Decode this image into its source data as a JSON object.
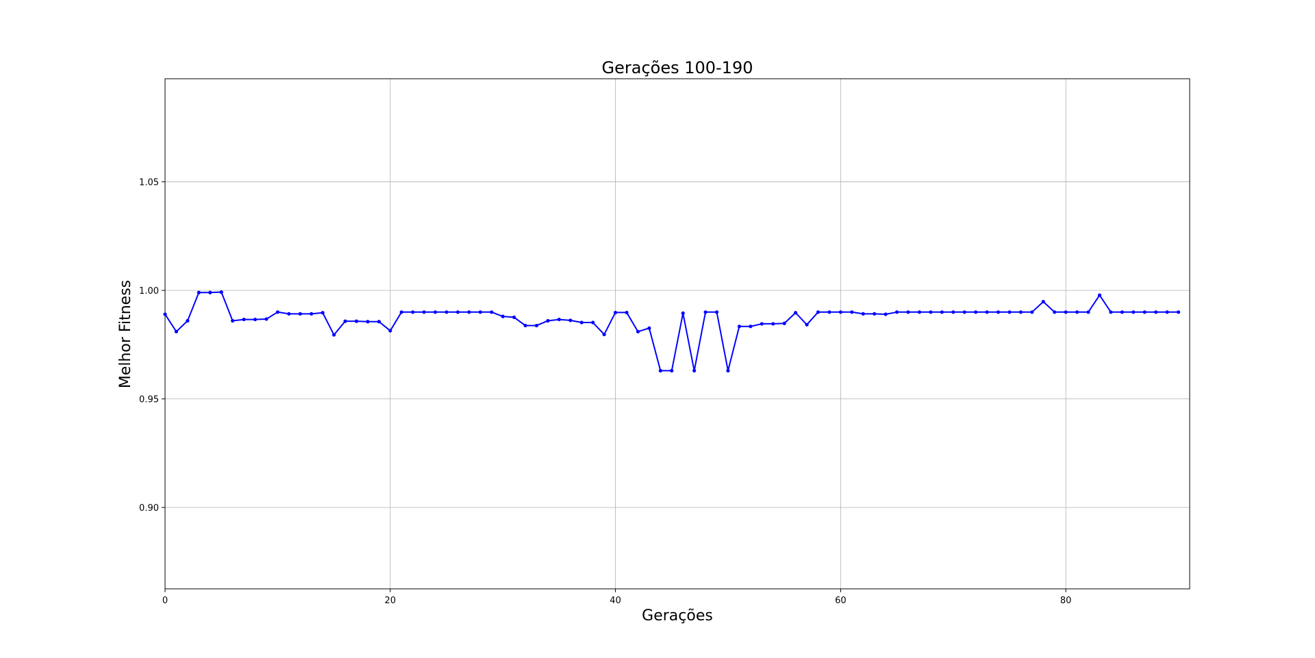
{
  "chart_data": {
    "type": "line",
    "title": "Gerações 100-190",
    "xlabel": "Gerações",
    "ylabel": "Melhor Fitness",
    "xlim": [
      0,
      91
    ],
    "ylim": [
      0.8625,
      1.0975
    ],
    "xticks": [
      0,
      20,
      40,
      60,
      80
    ],
    "xtick_labels": [
      "0",
      "20",
      "40",
      "60",
      "80"
    ],
    "yticks": [
      0.9,
      0.95,
      1.0,
      1.05
    ],
    "ytick_labels": [
      "0.90",
      "0.95",
      "1.00",
      "1.05"
    ],
    "grid": true,
    "series": [
      {
        "color": "#0000ff",
        "marker": "dot",
        "x": [
          0,
          1,
          2,
          3,
          4,
          5,
          6,
          7,
          8,
          9,
          10,
          11,
          12,
          13,
          14,
          15,
          16,
          17,
          18,
          19,
          20,
          21,
          22,
          23,
          24,
          25,
          26,
          27,
          28,
          29,
          30,
          31,
          32,
          33,
          34,
          35,
          36,
          37,
          38,
          39,
          40,
          41,
          42,
          43,
          44,
          45,
          46,
          47,
          48,
          49,
          50,
          51,
          52,
          53,
          54,
          55,
          56,
          57,
          58,
          59,
          60,
          61,
          62,
          63,
          64,
          65,
          66,
          67,
          68,
          69,
          70,
          71,
          72,
          73,
          74,
          75,
          76,
          77,
          78,
          79,
          80,
          81,
          82,
          83,
          84,
          85,
          86,
          87,
          88,
          89,
          90
        ],
        "y": [
          0.989,
          0.981,
          0.986,
          0.999,
          0.999,
          0.9992,
          0.986,
          0.9866,
          0.9866,
          0.9868,
          0.99,
          0.9892,
          0.9892,
          0.9892,
          0.9897,
          0.9795,
          0.9858,
          0.9858,
          0.9856,
          0.9856,
          0.9814,
          0.99,
          0.99,
          0.99,
          0.99,
          0.99,
          0.99,
          0.99,
          0.99,
          0.99,
          0.988,
          0.9876,
          0.9838,
          0.9838,
          0.986,
          0.9866,
          0.9862,
          0.9852,
          0.9852,
          0.9797,
          0.9898,
          0.9898,
          0.981,
          0.9826,
          0.963,
          0.963,
          0.9895,
          0.963,
          0.99,
          0.99,
          0.963,
          0.9834,
          0.9834,
          0.9846,
          0.9846,
          0.9848,
          0.9897,
          0.9842,
          0.99,
          0.99,
          0.99,
          0.99,
          0.9892,
          0.9892,
          0.989,
          0.99,
          0.99,
          0.99,
          0.99,
          0.99,
          0.99,
          0.99,
          0.99,
          0.99,
          0.99,
          0.99,
          0.99,
          0.99,
          0.9948,
          0.99,
          0.99,
          0.99,
          0.99,
          0.9978,
          0.99,
          0.99,
          0.99,
          0.99,
          0.99,
          0.99,
          0.99
        ]
      }
    ]
  }
}
